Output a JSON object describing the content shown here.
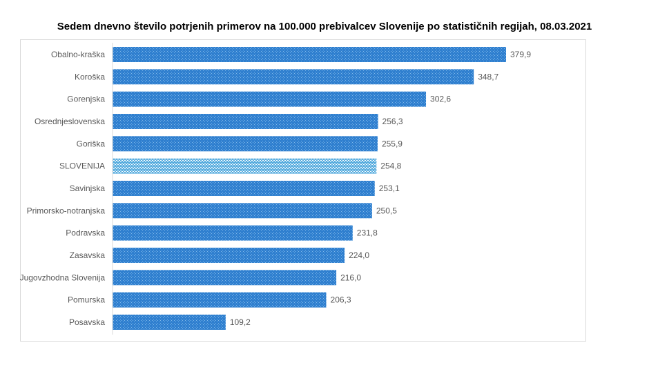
{
  "chart_data": {
    "type": "bar",
    "orientation": "horizontal",
    "title": "Sedem dnevno število potrjenih primerov na 100.000  prebivalcev Slovenije po statističnih regijah, 08.03.2021",
    "categories": [
      "Obalno-kraška",
      "Koroška",
      "Gorenjska",
      "Osrednjeslovenska",
      "Goriška",
      "SLOVENIJA",
      "Savinjska",
      "Primorsko-notranjska",
      "Podravska",
      "Zasavska",
      "Jugovzhodna Slovenija",
      "Pomurska",
      "Posavska"
    ],
    "values": [
      379.9,
      348.7,
      302.6,
      256.3,
      255.9,
      254.8,
      253.1,
      250.5,
      231.8,
      224.0,
      216.0,
      206.3,
      109.2
    ],
    "data_labels": [
      "379,9",
      "348,7",
      "302,6",
      "256,3",
      "255,9",
      "254,8",
      "253,1",
      "250,5",
      "231,8",
      "224,0",
      "216,0",
      "206,3",
      "109,2"
    ],
    "highlight_category": "SLOVENIJA",
    "colors": {
      "bar": "#2f7fcf",
      "bar_dots": "#7fb8ea",
      "highlight": "#7cc0e8",
      "highlight_dots": "#ffffff"
    },
    "xlim": [
      0,
      380
    ],
    "grid": false,
    "legend": "none",
    "xlabel": "",
    "ylabel": ""
  }
}
